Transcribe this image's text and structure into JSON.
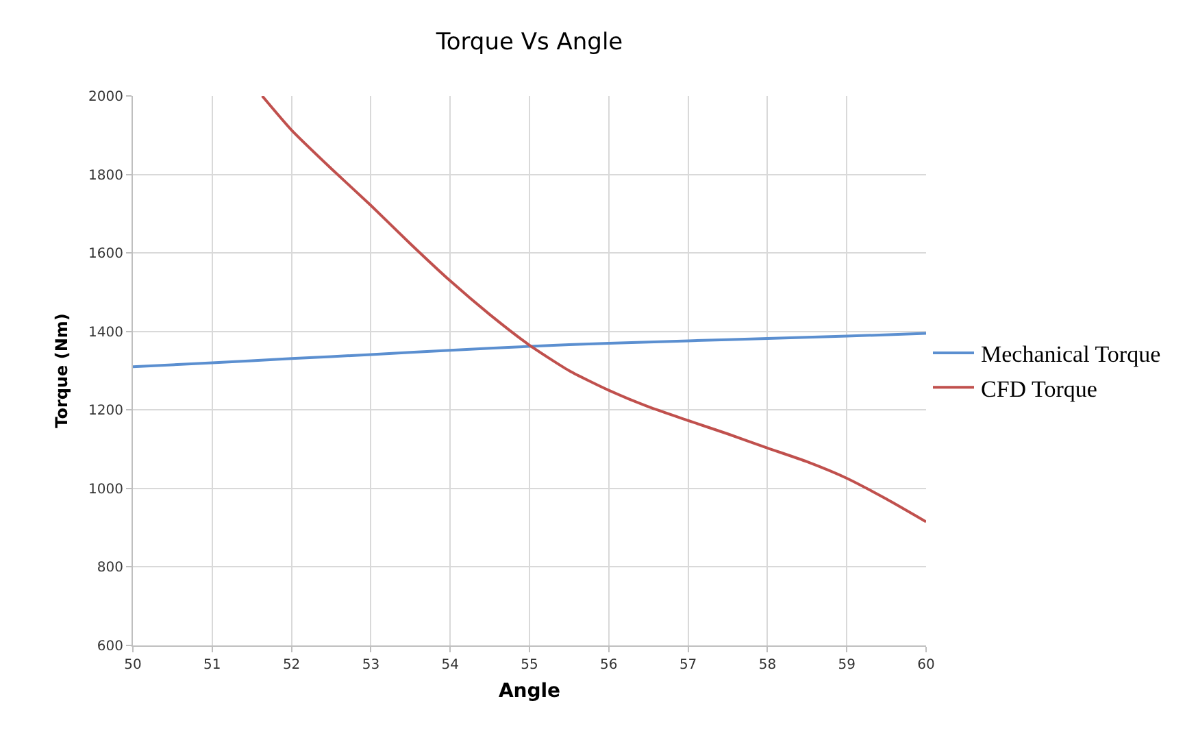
{
  "chart_data": {
    "type": "line",
    "title": "Torque Vs Angle",
    "xlabel": "Angle",
    "ylabel": "Torque (Nm)",
    "xlim": [
      50,
      60
    ],
    "xticks": [
      50,
      51,
      52,
      53,
      54,
      55,
      56,
      57,
      58,
      59,
      60
    ],
    "ylim": [
      600,
      2000
    ],
    "yticks": [
      600,
      800,
      1000,
      1200,
      1400,
      1600,
      1800,
      2000
    ],
    "grid": true,
    "legend": "right",
    "marker": "none",
    "line_style": "solid",
    "series": [
      {
        "name": "Mechanical Torque",
        "color": "#5b8fd0",
        "x": [
          50,
          51,
          52,
          53,
          54,
          55,
          56,
          57,
          58,
          59,
          60
        ],
        "values": [
          1310,
          1320,
          1331,
          1341,
          1352,
          1362,
          1370,
          1376,
          1382,
          1388,
          1395
        ]
      },
      {
        "name": "CFD Torque",
        "color": "#c0504d",
        "x": [
          51.63,
          52,
          52.5,
          53,
          53.5,
          54,
          54.5,
          55,
          55.5,
          56,
          56.5,
          57,
          57.5,
          58,
          58.5,
          59,
          59.5,
          60
        ],
        "values": [
          2000,
          1913,
          1815,
          1721,
          1623,
          1529,
          1443,
          1365,
          1300,
          1250,
          1208,
          1173,
          1139,
          1103,
          1068,
          1026,
          973,
          915
        ]
      }
    ]
  }
}
